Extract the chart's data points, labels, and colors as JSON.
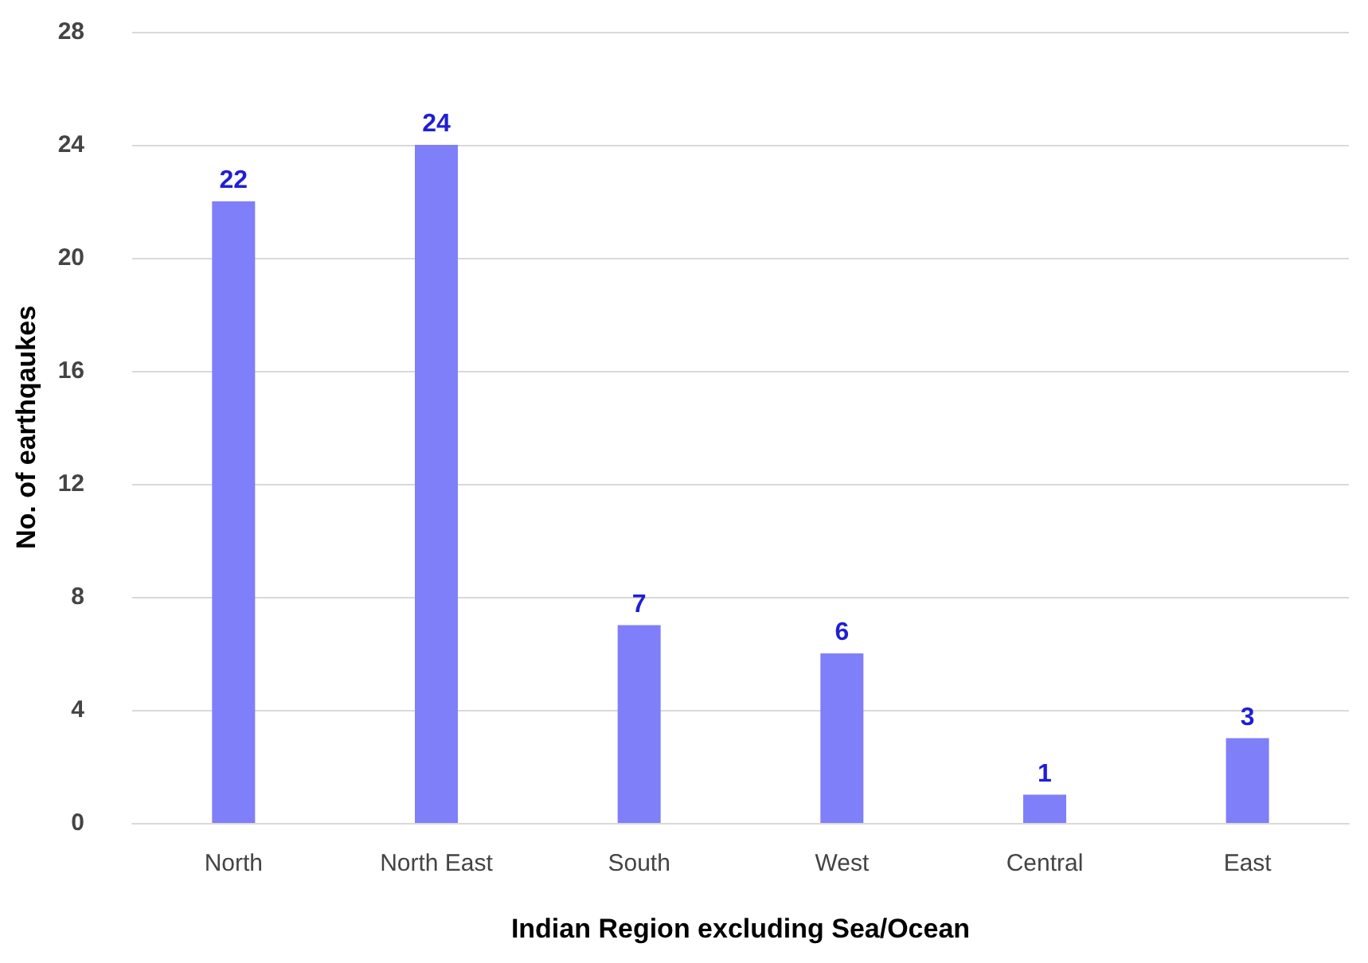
{
  "chart_data": {
    "type": "bar",
    "xlabel": "Indian Region excluding Sea/Ocean",
    "ylabel": "No. of earthqaukes",
    "categories": [
      "North",
      "North East",
      "South",
      "West",
      "Central",
      "East"
    ],
    "values": [
      22,
      24,
      7,
      6,
      1,
      3
    ],
    "color": "#7f7ffa",
    "ylim": [
      0,
      28
    ],
    "yticks": [
      0,
      4,
      8,
      12,
      16,
      20,
      24,
      28
    ],
    "grid": "y",
    "data_labels": true
  }
}
